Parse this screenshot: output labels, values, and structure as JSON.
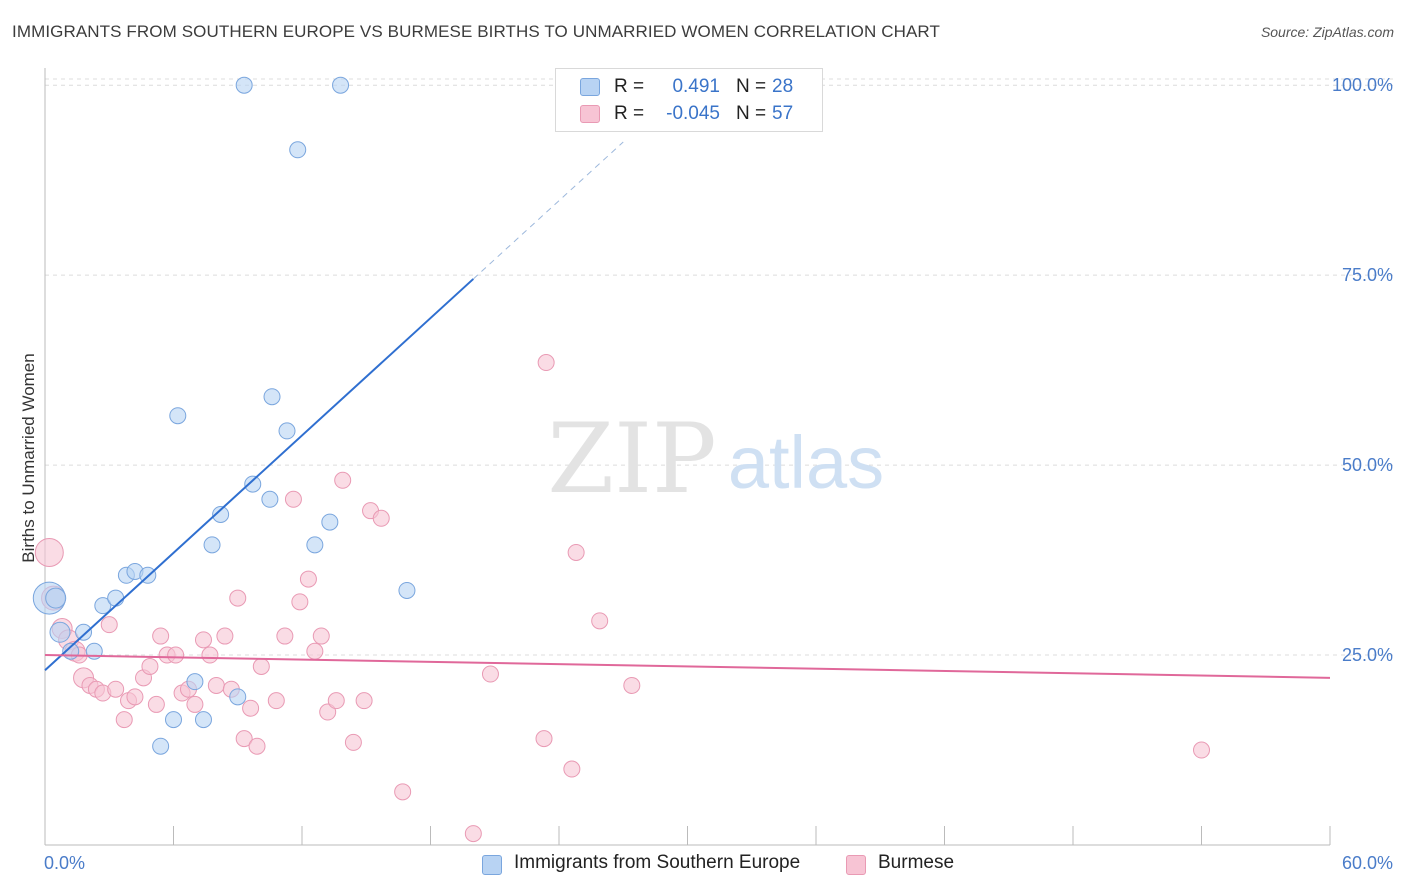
{
  "title": "IMMIGRANTS FROM SOUTHERN EUROPE VS BURMESE BIRTHS TO UNMARRIED WOMEN CORRELATION CHART",
  "source": "Source: ZipAtlas.com",
  "watermark": {
    "zip": "ZIP",
    "atlas": "atlas"
  },
  "legend": {
    "series1": {
      "r_label": "R =",
      "r_value": "0.491",
      "n_label": "N =",
      "n_value": "28"
    },
    "series2": {
      "r_label": "R =",
      "r_value": "-0.045",
      "n_label": "N =",
      "n_value": "57"
    }
  },
  "bottom_legend": {
    "series1": "Immigrants from Southern Europe",
    "series2": "Burmese"
  },
  "colors": {
    "series1_fill": "#b8d3f3",
    "series1_stroke": "#7aa6de",
    "series1_line": "#2f6fd0",
    "series2_fill": "#f7c4d4",
    "series2_stroke": "#e99ab4",
    "series2_line": "#e0689a",
    "tick_text": "#4a7cc9",
    "grid": "#dcdcdc"
  },
  "chart_data": {
    "type": "scatter",
    "title": "IMMIGRANTS FROM SOUTHERN EUROPE VS BURMESE BIRTHS TO UNMARRIED WOMEN CORRELATION CHART",
    "xlabel": "",
    "ylabel": "Births to Unmarried Women",
    "xlim": [
      0,
      60
    ],
    "ylim": [
      0,
      102
    ],
    "x_tick_labels": [
      "0.0%",
      "60.0%"
    ],
    "y_ticks": [
      25,
      50,
      75,
      100
    ],
    "y_tick_labels": [
      "25.0%",
      "50.0%",
      "75.0%",
      "100.0%"
    ],
    "series": [
      {
        "name": "Immigrants from Southern Europe",
        "trend": {
          "x0": 0,
          "y0": 23.0,
          "x1": 20.0,
          "y1": 74.5,
          "dash_to_x": 27.0
        },
        "points": [
          [
            0.2,
            32.5,
            16
          ],
          [
            0.5,
            32.5,
            10
          ],
          [
            0.7,
            28.0,
            10
          ],
          [
            1.2,
            25.5,
            8
          ],
          [
            1.8,
            28.0,
            8
          ],
          [
            2.3,
            25.5,
            8
          ],
          [
            2.7,
            31.5,
            8
          ],
          [
            3.3,
            32.5,
            8
          ],
          [
            3.8,
            35.5,
            8
          ],
          [
            4.2,
            36.0,
            8
          ],
          [
            4.8,
            35.5,
            8
          ],
          [
            5.4,
            13.0,
            8
          ],
          [
            6.0,
            16.5,
            8
          ],
          [
            6.2,
            56.5,
            8
          ],
          [
            7.0,
            21.5,
            8
          ],
          [
            7.4,
            16.5,
            8
          ],
          [
            7.8,
            39.5,
            8
          ],
          [
            8.2,
            43.5,
            8
          ],
          [
            9.0,
            19.5,
            8
          ],
          [
            9.3,
            100.0,
            8
          ],
          [
            9.7,
            47.5,
            8
          ],
          [
            10.5,
            45.5,
            8
          ],
          [
            10.6,
            59.0,
            8
          ],
          [
            11.3,
            54.5,
            8
          ],
          [
            11.8,
            91.5,
            8
          ],
          [
            12.6,
            39.5,
            8
          ],
          [
            13.3,
            42.5,
            8
          ],
          [
            13.8,
            100.0,
            8
          ],
          [
            16.9,
            33.5,
            8
          ]
        ]
      },
      {
        "name": "Burmese",
        "trend": {
          "x0": 0,
          "y0": 25.0,
          "x1": 60.0,
          "y1": 22.0
        },
        "points": [
          [
            0.2,
            38.5,
            14
          ],
          [
            0.4,
            32.5,
            12
          ],
          [
            0.8,
            28.5,
            10
          ],
          [
            1.1,
            27.0,
            10
          ],
          [
            1.4,
            25.5,
            10
          ],
          [
            1.6,
            25.0,
            8
          ],
          [
            1.8,
            22.0,
            10
          ],
          [
            2.1,
            21.0,
            8
          ],
          [
            2.4,
            20.5,
            8
          ],
          [
            2.7,
            20.0,
            8
          ],
          [
            3.0,
            29.0,
            8
          ],
          [
            3.3,
            20.5,
            8
          ],
          [
            3.7,
            16.5,
            8
          ],
          [
            3.9,
            19.0,
            8
          ],
          [
            4.2,
            19.5,
            8
          ],
          [
            4.6,
            22.0,
            8
          ],
          [
            4.9,
            23.5,
            8
          ],
          [
            5.2,
            18.5,
            8
          ],
          [
            5.4,
            27.5,
            8
          ],
          [
            5.7,
            25.0,
            8
          ],
          [
            6.1,
            25.0,
            8
          ],
          [
            6.4,
            20.0,
            8
          ],
          [
            6.7,
            20.5,
            8
          ],
          [
            7.0,
            18.5,
            8
          ],
          [
            7.4,
            27.0,
            8
          ],
          [
            7.7,
            25.0,
            8
          ],
          [
            8.0,
            21.0,
            8
          ],
          [
            8.4,
            27.5,
            8
          ],
          [
            8.7,
            20.5,
            8
          ],
          [
            9.0,
            32.5,
            8
          ],
          [
            9.3,
            14.0,
            8
          ],
          [
            9.6,
            18.0,
            8
          ],
          [
            9.9,
            13.0,
            8
          ],
          [
            10.1,
            23.5,
            8
          ],
          [
            10.8,
            19.0,
            8
          ],
          [
            11.2,
            27.5,
            8
          ],
          [
            11.6,
            45.5,
            8
          ],
          [
            11.9,
            32.0,
            8
          ],
          [
            12.3,
            35.0,
            8
          ],
          [
            12.6,
            25.5,
            8
          ],
          [
            12.9,
            27.5,
            8
          ],
          [
            13.2,
            17.5,
            8
          ],
          [
            13.6,
            19.0,
            8
          ],
          [
            13.9,
            48.0,
            8
          ],
          [
            14.4,
            13.5,
            8
          ],
          [
            14.9,
            19.0,
            8
          ],
          [
            15.2,
            44.0,
            8
          ],
          [
            15.7,
            43.0,
            8
          ],
          [
            16.7,
            7.0,
            8
          ],
          [
            20.0,
            1.5,
            8
          ],
          [
            20.8,
            22.5,
            8
          ],
          [
            23.3,
            14.0,
            8
          ],
          [
            23.4,
            63.5,
            8
          ],
          [
            24.6,
            10.0,
            8
          ],
          [
            24.8,
            38.5,
            8
          ],
          [
            25.9,
            29.5,
            8
          ],
          [
            27.4,
            21.0,
            8
          ],
          [
            54.0,
            12.5,
            8
          ]
        ]
      }
    ]
  }
}
